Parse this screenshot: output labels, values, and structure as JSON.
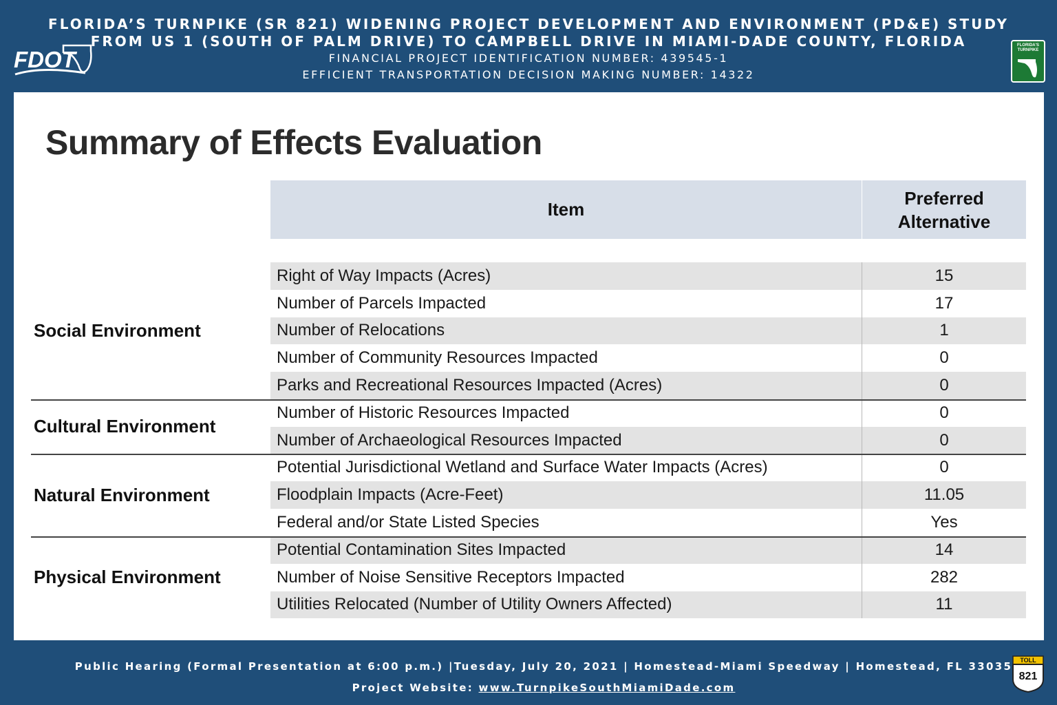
{
  "header": {
    "line1": "FLORIDA’S TURNPIKE (SR 821) WIDENING PROJECT DEVELOPMENT AND ENVIRONMENT (PD&E) STUDY",
    "line2": "FROM US 1 (SOUTH OF PALM DRIVE) TO CAMPBELL DRIVE IN MIAMI-DADE COUNTY, FLORIDA",
    "line3": "FINANCIAL PROJECT IDENTIFICATION NUMBER: 439545-1",
    "line4": "EFFICIENT TRANSPORTATION DECISION MAKING NUMBER: 14322",
    "left_logo": "FDOT",
    "right_logo": "FLORIDA'S TURNPIKE"
  },
  "title": "Summary of Effects Evaluation",
  "table": {
    "col_item": "Item",
    "col_pref": "Preferred Alternative",
    "rows": [
      {
        "item": "Right of Way Impacts (Acres)",
        "value": "15"
      },
      {
        "item": "Number of Parcels Impacted",
        "value": "17"
      },
      {
        "item": "Number of Relocations",
        "value": "1"
      },
      {
        "item": "Number of Community Resources Impacted",
        "value": "0"
      },
      {
        "item": "Parks and Recreational Resources Impacted (Acres)",
        "value": "0"
      },
      {
        "item": "Number of Historic Resources Impacted",
        "value": "0"
      },
      {
        "item": "Number of Archaeological Resources Impacted",
        "value": "0"
      },
      {
        "item": "Potential Jurisdictional Wetland and Surface Water Impacts (Acres)",
        "value": "0"
      },
      {
        "item": "Floodplain Impacts (Acre-Feet)",
        "value": "11.05"
      },
      {
        "item": "Federal and/or State Listed Species",
        "value": "Yes"
      },
      {
        "item": "Potential Contamination Sites Impacted",
        "value": "14"
      },
      {
        "item": "Number of Noise Sensitive Receptors Impacted",
        "value": "282"
      },
      {
        "item": "Utilities Relocated (Number of Utility Owners Affected)",
        "value": "11"
      }
    ]
  },
  "categories": {
    "social": "Social Environment",
    "cultural": "Cultural Environment",
    "natural": "Natural Environment",
    "physical": "Physical Environment"
  },
  "footer": {
    "line1": "Public Hearing (Formal Presentation at 6:00 p.m.) |Tuesday, July 20, 2021 | Homestead-Miami Speedway | Homestead, FL  33035",
    "website_label": "Project Website:",
    "website": "www.TurnpikeSouthMiamiDade.com",
    "toll_label": "TOLL",
    "toll_number": "821"
  },
  "colors": {
    "navy": "#1f4e79",
    "header_row": "#d7dee8",
    "shade_row": "#e3e3e3",
    "turnpike_green": "#1d7a35"
  }
}
